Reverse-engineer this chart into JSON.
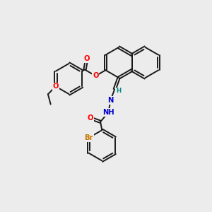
{
  "bg_color": "#ececec",
  "bond_color": "#1a1a1a",
  "bond_width": 1.4,
  "dbo": 0.055,
  "atom_colors": {
    "O": "#ff0000",
    "N": "#0000cc",
    "Br": "#cc7700",
    "H": "#008888",
    "C": "#1a1a1a"
  },
  "font_size": 7.2
}
